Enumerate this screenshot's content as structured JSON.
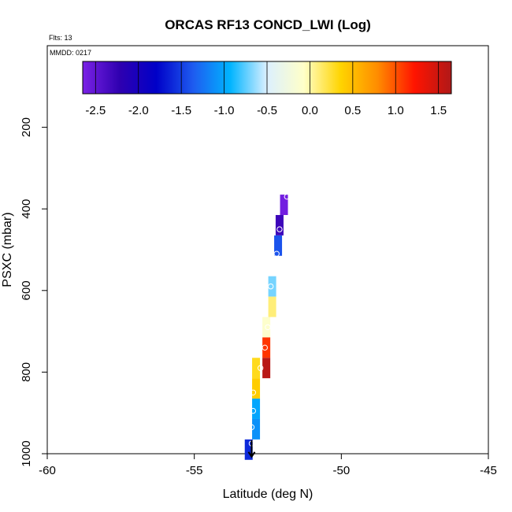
{
  "chart_data": {
    "type": "heatmap",
    "title": "ORCAS RF13 CONCD_LWI (Log)",
    "note_flts": "Flts: 13",
    "note_mmdd": "MMDD: 0217",
    "xlabel": "Latitude (deg N)",
    "ylabel": "PSXC (mbar)",
    "xlim": [
      -60,
      -45
    ],
    "ylim": [
      1000,
      0
    ],
    "x_ticks": [
      "-60",
      "-55",
      "-50",
      "-45"
    ],
    "y_ticks": [
      "200",
      "400",
      "600",
      "800",
      "1000"
    ],
    "colorbar": {
      "range": [
        -2.65,
        1.65
      ],
      "ticks": [
        "-2.5",
        "-2.0",
        "-1.5",
        "-1.0",
        "-0.5",
        "0.0",
        "0.5",
        "1.0",
        "1.5"
      ],
      "colors": [
        "#7b22e6",
        "#2f00b0",
        "#0000c8",
        "#1e5cf0",
        "#00b4ff",
        "#dcf0ff",
        "#ffffc8",
        "#ffd400",
        "#ff8c00",
        "#ff1400",
        "#b01818"
      ]
    },
    "cells": [
      {
        "lat": -51.95,
        "p_top": 365,
        "p_bot": 415,
        "value": -2.6
      },
      {
        "lat": -52.1,
        "p_top": 415,
        "p_bot": 465,
        "value": -2.3
      },
      {
        "lat": -52.15,
        "p_top": 465,
        "p_bot": 515,
        "value": -1.4
      },
      {
        "lat": -52.35,
        "p_top": 565,
        "p_bot": 615,
        "value": -0.7
      },
      {
        "lat": -52.35,
        "p_top": 615,
        "p_bot": 665,
        "value": 0.1
      },
      {
        "lat": -52.55,
        "p_top": 665,
        "p_bot": 715,
        "value": -0.1
      },
      {
        "lat": -52.55,
        "p_top": 715,
        "p_bot": 765,
        "value": 1.1
      },
      {
        "lat": -52.55,
        "p_top": 765,
        "p_bot": 815,
        "value": 1.6
      },
      {
        "lat": -52.9,
        "p_top": 765,
        "p_bot": 815,
        "value": 0.3
      },
      {
        "lat": -52.9,
        "p_top": 815,
        "p_bot": 865,
        "value": 0.4
      },
      {
        "lat": -52.9,
        "p_top": 865,
        "p_bot": 915,
        "value": -1.0
      },
      {
        "lat": -52.9,
        "p_top": 915,
        "p_bot": 965,
        "value": -1.1
      },
      {
        "lat": -53.15,
        "p_top": 965,
        "p_bot": 1015,
        "value": -1.6
      }
    ],
    "track": [
      {
        "lat": -51.85,
        "p": 370
      },
      {
        "lat": -52.1,
        "p": 450
      },
      {
        "lat": -52.2,
        "p": 510
      },
      {
        "lat": -52.4,
        "p": 590
      },
      {
        "lat": -52.5,
        "p": 690
      },
      {
        "lat": -52.6,
        "p": 740
      },
      {
        "lat": -52.75,
        "p": 790
      },
      {
        "lat": -53.0,
        "p": 850
      },
      {
        "lat": -53.0,
        "p": 895
      },
      {
        "lat": -53.05,
        "p": 935
      },
      {
        "lat": -53.05,
        "p": 975
      }
    ],
    "end_marker": {
      "lat": -53.05,
      "p": 990
    }
  }
}
